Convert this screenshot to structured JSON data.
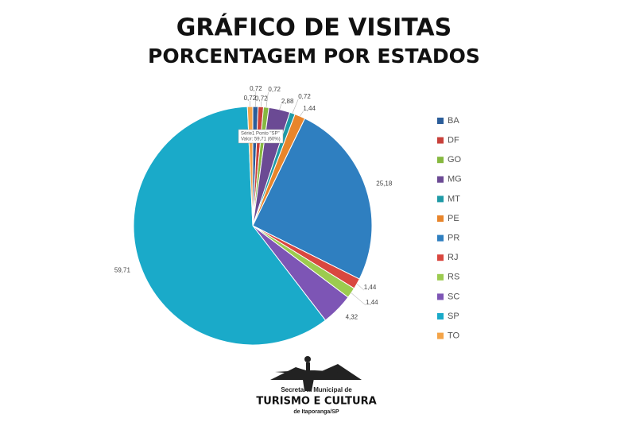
{
  "chart_data": {
    "type": "pie",
    "title": "GRÁFICO DE VISITAS",
    "subtitle": "PORCENTAGEM POR ESTADOS",
    "categories": [
      "BA",
      "DF",
      "GO",
      "MG",
      "MT",
      "PE",
      "PR",
      "RJ",
      "RS",
      "SC",
      "SP",
      "TO"
    ],
    "values": [
      0.72,
      0.72,
      0.72,
      2.88,
      0.72,
      1.44,
      25.18,
      1.44,
      1.44,
      4.32,
      59.71,
      0.72
    ],
    "value_labels": [
      "0,72",
      "0,72",
      "0,72",
      "2,88",
      "0,72",
      "1,44",
      "25,18",
      "1,44",
      "1,44",
      "4,32",
      "59,71",
      "0,72"
    ],
    "colors": [
      "#2b5d99",
      "#c8403a",
      "#86b83f",
      "#6b4a94",
      "#1f9aa6",
      "#e8852b",
      "#2f7fc0",
      "#d9473f",
      "#9ccb4f",
      "#7d55b5",
      "#1aaac9",
      "#f4a448"
    ],
    "tooltip": [
      "Série1 Ponto \"SP\"",
      "Valor: 59,71 (60%)"
    ],
    "logo": [
      "Secretaria Municipal de",
      "TURISMO E CULTURA",
      "de Itaporanga/SP"
    ]
  }
}
